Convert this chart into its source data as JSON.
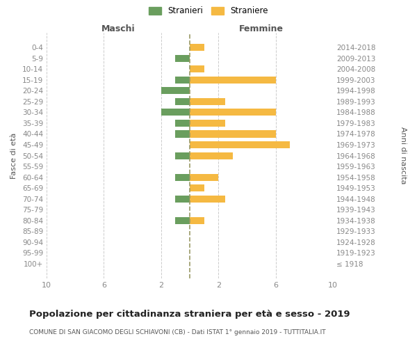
{
  "age_groups": [
    "100+",
    "95-99",
    "90-94",
    "85-89",
    "80-84",
    "75-79",
    "70-74",
    "65-69",
    "60-64",
    "55-59",
    "50-54",
    "45-49",
    "40-44",
    "35-39",
    "30-34",
    "25-29",
    "20-24",
    "15-19",
    "10-14",
    "5-9",
    "0-4"
  ],
  "birth_years": [
    "≤ 1918",
    "1919-1923",
    "1924-1928",
    "1929-1933",
    "1934-1938",
    "1939-1943",
    "1944-1948",
    "1949-1953",
    "1954-1958",
    "1959-1963",
    "1964-1968",
    "1969-1973",
    "1974-1978",
    "1979-1983",
    "1984-1988",
    "1989-1993",
    "1994-1998",
    "1999-2003",
    "2004-2008",
    "2009-2013",
    "2014-2018"
  ],
  "maschi": [
    0,
    0,
    0,
    0,
    1,
    0,
    1,
    0,
    1,
    0,
    1,
    0,
    1,
    1,
    2,
    1,
    2,
    1,
    0,
    1,
    0
  ],
  "femmine": [
    0,
    0,
    0,
    0,
    1,
    0,
    2.5,
    1,
    2,
    0,
    3,
    7,
    6,
    2.5,
    6,
    2.5,
    0,
    6,
    1,
    0,
    1
  ],
  "maschi_color": "#6a9e5e",
  "femmine_color": "#f5b942",
  "center_line_color": "#999966",
  "title": "Popolazione per cittadinanza straniera per età e sesso - 2019",
  "subtitle": "COMUNE DI SAN GIACOMO DEGLI SCHIAVONI (CB) - Dati ISTAT 1° gennaio 2019 - TUTTITALIA.IT",
  "ylabel_left": "Fasce di età",
  "ylabel_right": "Anni di nascita",
  "xlabel_left": "Maschi",
  "xlabel_right": "Femmine",
  "legend_stranieri": "Stranieri",
  "legend_straniere": "Straniere",
  "xlim": 10,
  "background_color": "#ffffff",
  "grid_color": "#cccccc"
}
